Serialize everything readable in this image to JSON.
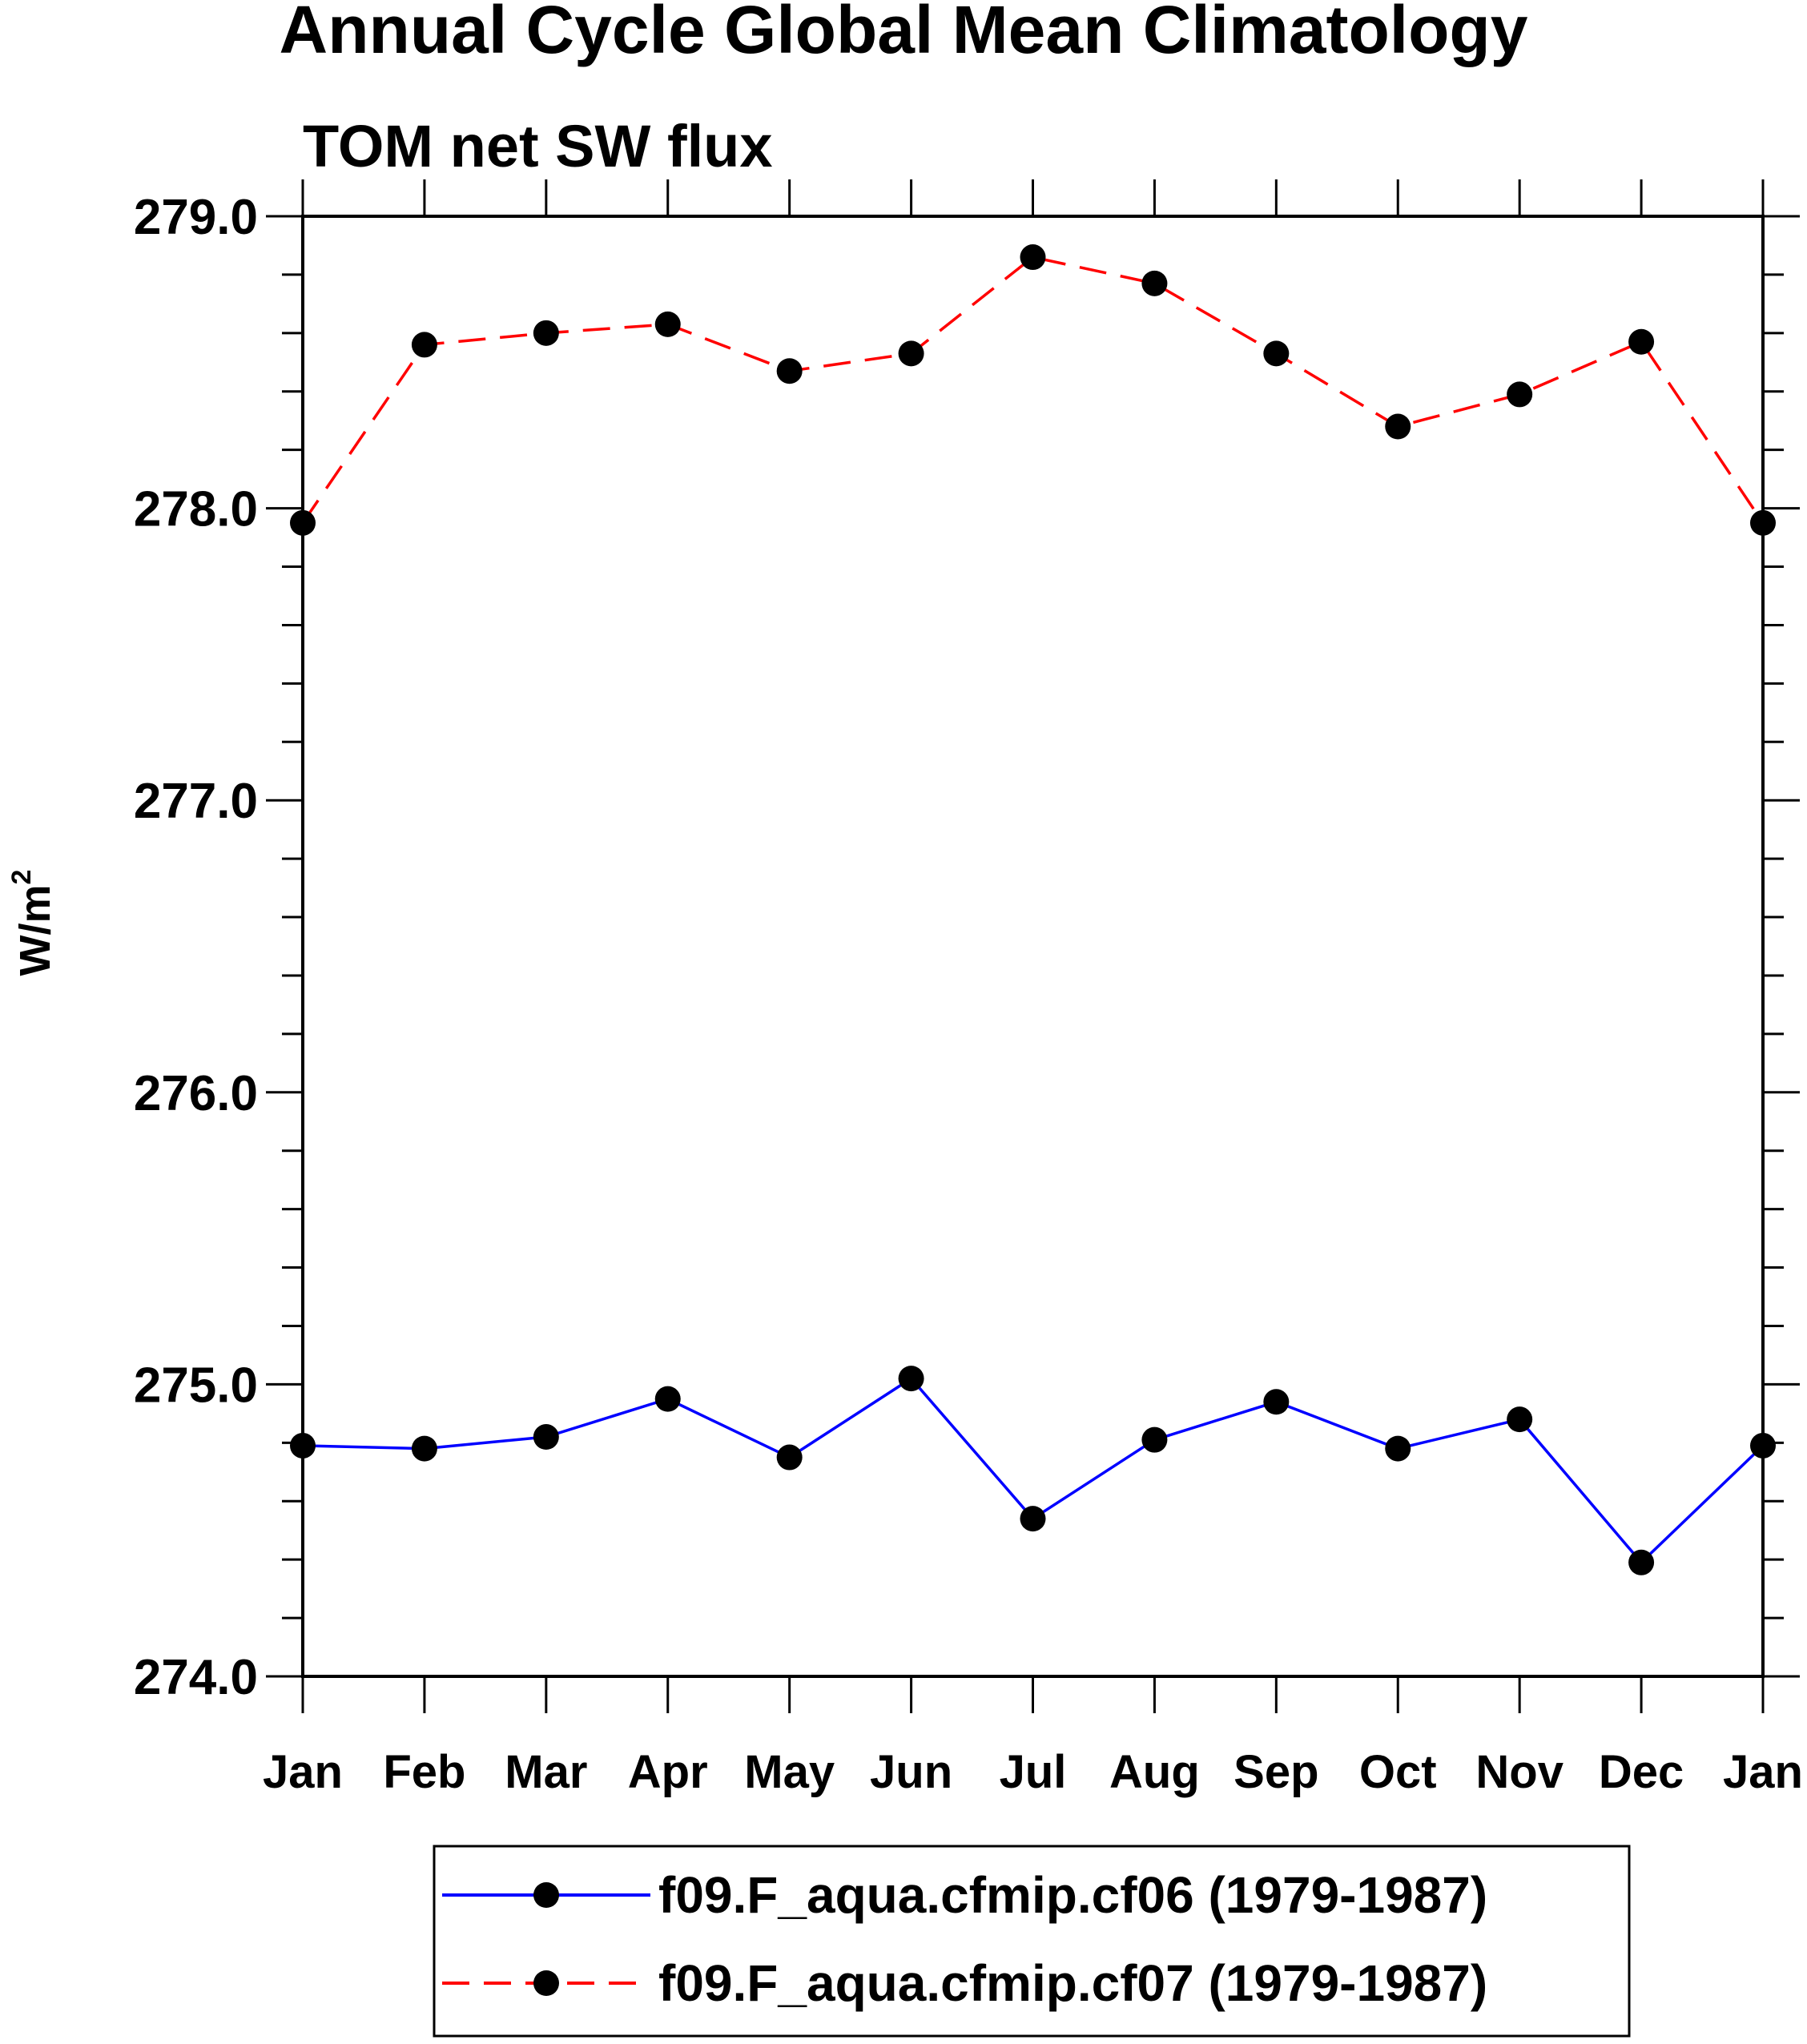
{
  "chart_data": {
    "type": "line",
    "title": "Annual Cycle Global Mean Climatology",
    "subtitle": "TOM net SW flux",
    "ylabel": "W/m",
    "ylabel_superscript": "2",
    "xlabel": "",
    "categories": [
      "Jan",
      "Feb",
      "Mar",
      "Apr",
      "May",
      "Jun",
      "Jul",
      "Aug",
      "Sep",
      "Oct",
      "Nov",
      "Dec",
      "Jan"
    ],
    "ylim": [
      274.0,
      279.0
    ],
    "yticks": [
      "274.0",
      "275.0",
      "276.0",
      "277.0",
      "278.0",
      "279.0"
    ],
    "grid": false,
    "legend_position": "bottom",
    "series": [
      {
        "name": "f09.F_aqua.cfmip.cf06 (1979-1987)",
        "color": "#0000ff",
        "dash": "solid",
        "values": [
          274.79,
          274.78,
          274.82,
          274.95,
          274.75,
          275.02,
          274.54,
          274.81,
          274.94,
          274.78,
          274.88,
          274.39,
          274.79
        ]
      },
      {
        "name": "f09.F_aqua.cfmip.cf07 (1979-1987)",
        "color": "#ff0000",
        "dash": "dashed",
        "values": [
          277.95,
          278.56,
          278.6,
          278.63,
          278.47,
          278.53,
          278.86,
          278.77,
          278.53,
          278.28,
          278.39,
          278.57,
          277.95
        ]
      }
    ]
  }
}
